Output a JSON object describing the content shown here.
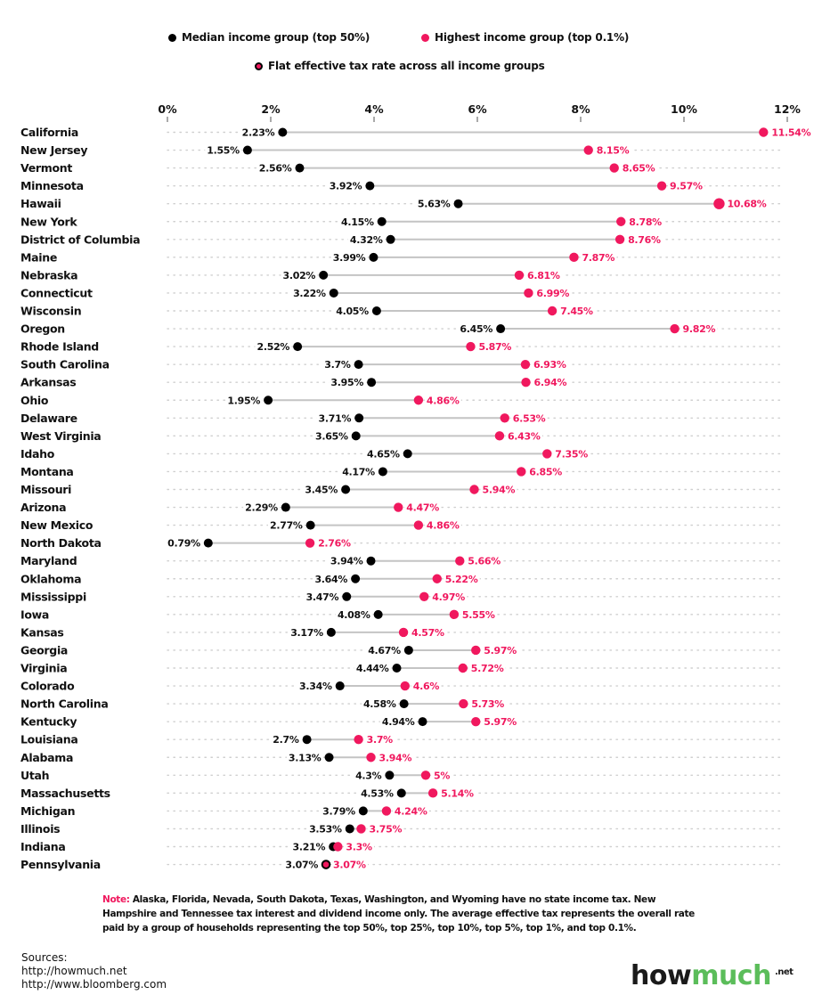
{
  "legend": {
    "median": "Median income group (top 50%)",
    "highest": "Highest income group (top 0.1%)",
    "flat": "Flat effective tax rate across all income groups"
  },
  "colors": {
    "median": "#000000",
    "highest": "#f0185e",
    "connector": "#c4c4c4",
    "gridDots": "#cfcfcf",
    "logoGreen": "#5bbd5a"
  },
  "chart_data": {
    "type": "dot-plot",
    "title": "",
    "xlabel": "",
    "ylabel": "",
    "xlim": [
      0,
      12
    ],
    "x_ticks": [
      0,
      2,
      4,
      6,
      8,
      10,
      12
    ],
    "x_tick_labels": [
      "0%",
      "2%",
      "4%",
      "6%",
      "8%",
      "10%",
      "12%"
    ],
    "grid": "dotted horizontal guide per row",
    "legend_position": "top",
    "series": [
      {
        "name": "Median income group (top 50%)",
        "key": "median"
      },
      {
        "name": "Highest income group (top 0.1%)",
        "key": "high"
      }
    ],
    "rows": [
      {
        "state": "California",
        "median": 2.23,
        "high": 11.54
      },
      {
        "state": "New Jersey",
        "median": 1.55,
        "high": 8.15
      },
      {
        "state": "Vermont",
        "median": 2.56,
        "high": 8.65
      },
      {
        "state": "Minnesota",
        "median": 3.92,
        "high": 9.57
      },
      {
        "state": "Hawaii",
        "median": 5.63,
        "high": 10.68
      },
      {
        "state": "New York",
        "median": 4.15,
        "high": 8.78
      },
      {
        "state": "District of Columbia",
        "median": 4.32,
        "high": 8.76
      },
      {
        "state": "Maine",
        "median": 3.99,
        "high": 7.87
      },
      {
        "state": "Nebraska",
        "median": 3.02,
        "high": 6.81
      },
      {
        "state": "Connecticut",
        "median": 3.22,
        "high": 6.99
      },
      {
        "state": "Wisconsin",
        "median": 4.05,
        "high": 7.45
      },
      {
        "state": "Oregon",
        "median": 6.45,
        "high": 9.82
      },
      {
        "state": "Rhode Island",
        "median": 2.52,
        "high": 5.87
      },
      {
        "state": "South Carolina",
        "median": 3.7,
        "high": 6.93
      },
      {
        "state": "Arkansas",
        "median": 3.95,
        "high": 6.94
      },
      {
        "state": "Ohio",
        "median": 1.95,
        "high": 4.86
      },
      {
        "state": "Delaware",
        "median": 3.71,
        "high": 6.53
      },
      {
        "state": "West Virginia",
        "median": 3.65,
        "high": 6.43
      },
      {
        "state": "Idaho",
        "median": 4.65,
        "high": 7.35
      },
      {
        "state": "Montana",
        "median": 4.17,
        "high": 6.85
      },
      {
        "state": "Missouri",
        "median": 3.45,
        "high": 5.94
      },
      {
        "state": "Arizona",
        "median": 2.29,
        "high": 4.47
      },
      {
        "state": "New Mexico",
        "median": 2.77,
        "high": 4.86
      },
      {
        "state": "North Dakota",
        "median": 0.79,
        "high": 2.76
      },
      {
        "state": "Maryland",
        "median": 3.94,
        "high": 5.66
      },
      {
        "state": "Oklahoma",
        "median": 3.64,
        "high": 5.22
      },
      {
        "state": "Mississippi",
        "median": 3.47,
        "high": 4.97
      },
      {
        "state": "Iowa",
        "median": 4.08,
        "high": 5.55
      },
      {
        "state": "Kansas",
        "median": 3.17,
        "high": 4.57
      },
      {
        "state": "Georgia",
        "median": 4.67,
        "high": 5.97
      },
      {
        "state": "Virginia",
        "median": 4.44,
        "high": 5.72
      },
      {
        "state": "Colorado",
        "median": 3.34,
        "high": 4.6
      },
      {
        "state": "North Carolina",
        "median": 4.58,
        "high": 5.73
      },
      {
        "state": "Kentucky",
        "median": 4.94,
        "high": 5.97
      },
      {
        "state": "Louisiana",
        "median": 2.7,
        "high": 3.7
      },
      {
        "state": "Alabama",
        "median": 3.13,
        "high": 3.94
      },
      {
        "state": "Utah",
        "median": 4.3,
        "high": 5
      },
      {
        "state": "Massachusetts",
        "median": 4.53,
        "high": 5.14
      },
      {
        "state": "Michigan",
        "median": 3.79,
        "high": 4.24
      },
      {
        "state": "Illinois",
        "median": 3.53,
        "high": 3.75
      },
      {
        "state": "Indiana",
        "median": 3.21,
        "high": 3.3
      },
      {
        "state": "Pennsylvania",
        "median": 3.07,
        "high": 3.07,
        "flat": true
      }
    ]
  },
  "note": {
    "key": "Note:",
    "text": " Alaska, Florida, Nevada, South Dakota, Texas, Washington, and Wyoming have no state income tax. New Hampshire and Tennessee tax interest and dividend income only. The average effective tax represents the overall rate paid by a group of households representing the top 50%, top 25%, top 10%, top 5%, top 1%, and top 0.1%."
  },
  "sources": {
    "heading": "Sources:",
    "items": [
      "http://howmuch.net",
      "http://www.bloomberg.com"
    ]
  },
  "logo": {
    "how": "how",
    "much": "much",
    "net": ".net"
  }
}
